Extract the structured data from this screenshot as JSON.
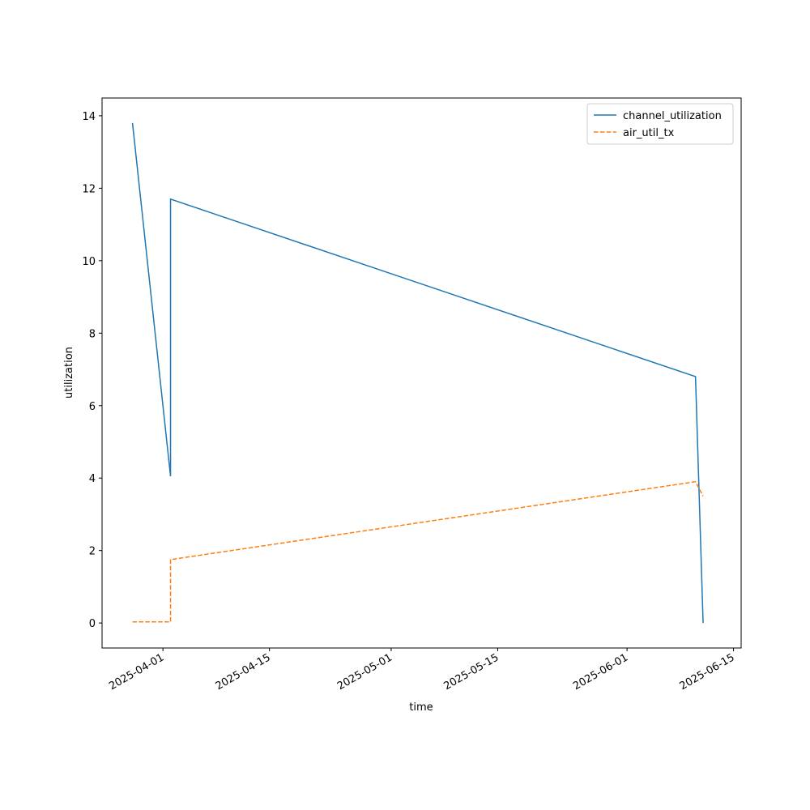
{
  "chart_data": {
    "type": "line",
    "x_label": "time",
    "y_label": "utilization",
    "x": [
      "2025-03-28",
      "2025-04-02",
      "2025-04-02",
      "2025-06-10",
      "2025-06-11"
    ],
    "series": [
      {
        "name": "channel_utilization",
        "color": "#1f77b4",
        "dash": "solid",
        "values": [
          13.8,
          4.05,
          11.7,
          6.8,
          0.0
        ]
      },
      {
        "name": "air_util_tx",
        "color": "#ff7f0e",
        "dash": "dashed",
        "values": [
          0.03,
          0.03,
          1.75,
          3.9,
          3.5
        ]
      }
    ],
    "xlim": [
      "2025-03-24",
      "2025-06-16"
    ],
    "xticks": [
      "2025-04-01",
      "2025-04-15",
      "2025-05-01",
      "2025-05-15",
      "2025-06-01",
      "2025-06-15"
    ],
    "ylim": [
      -0.69,
      14.49
    ],
    "yticks": [
      0,
      2,
      4,
      6,
      8,
      10,
      12,
      14
    ],
    "grid": false,
    "legend": "upper right"
  }
}
